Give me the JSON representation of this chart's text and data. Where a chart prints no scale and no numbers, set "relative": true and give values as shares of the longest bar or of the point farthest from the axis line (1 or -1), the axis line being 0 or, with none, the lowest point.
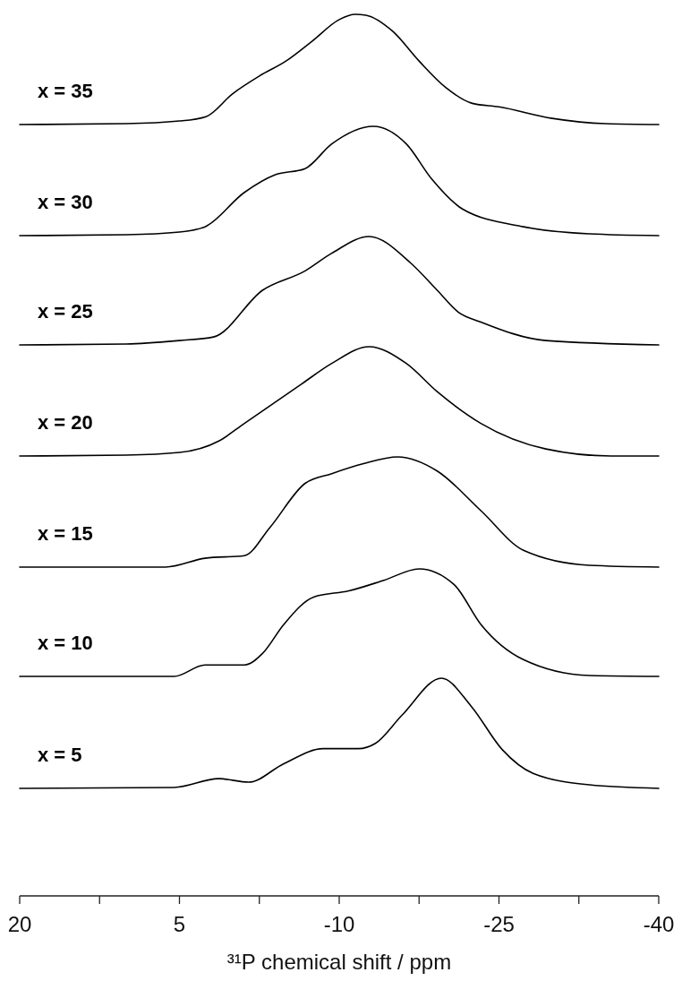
{
  "chart_data": {
    "type": "line",
    "relative": true,
    "xlabel": "³¹P chemical shift / ppm",
    "xlim": [
      20,
      -40
    ],
    "xticks": [
      20,
      {
        "value": 12.5,
        "label": null
      },
      5,
      {
        "value": -2.5,
        "label": null
      },
      -10,
      {
        "value": -17.5,
        "label": null
      },
      -25,
      {
        "value": -32.5,
        "label": null
      },
      -40
    ],
    "marker": "none",
    "line_style": "solid",
    "grid": false,
    "legend": false,
    "series": [
      {
        "name": "x = 35",
        "color": "#000000",
        "x": [
          20,
          10,
          5,
          2.5,
          0,
          -2.5,
          -5,
          -7.5,
          -10,
          -11.5,
          -12.5,
          -15,
          -17.5,
          -20,
          -22.5,
          -25,
          -30,
          -35,
          -40
        ],
        "values": [
          0.875,
          0.876,
          0.879,
          0.884,
          0.91,
          0.93,
          0.947,
          0.97,
          0.994,
          1.0,
          0.999,
          0.981,
          0.947,
          0.917,
          0.899,
          0.895,
          0.882,
          0.876,
          0.875
        ]
      },
      {
        "name": "x = 30",
        "color": "#000000",
        "x": [
          20,
          10,
          5,
          2.6,
          -1.1,
          -4,
          -6.8,
          -9.3,
          -13.2,
          -16.3,
          -18.7,
          -21.6,
          -27.3,
          -33.5,
          -40
        ],
        "values": [
          0.749,
          0.75,
          0.753,
          0.759,
          0.798,
          0.818,
          0.825,
          0.853,
          0.873,
          0.853,
          0.813,
          0.779,
          0.759,
          0.751,
          0.749
        ]
      },
      {
        "name": "x = 25",
        "color": "#000000",
        "x": [
          20,
          10,
          5,
          1.8,
          -2.8,
          -6.8,
          -9.3,
          -12.8,
          -16.7,
          -19.2,
          -21.2,
          -23.3,
          -29.4,
          -40
        ],
        "values": [
          0.625,
          0.626,
          0.63,
          0.634,
          0.687,
          0.709,
          0.729,
          0.748,
          0.718,
          0.687,
          0.662,
          0.651,
          0.63,
          0.625
        ]
      },
      {
        "name": "x = 20",
        "color": "#000000",
        "x": [
          20,
          10,
          5,
          1.3,
          -1.1,
          -6.5,
          -9.3,
          -12.8,
          -16.3,
          -19.2,
          -23.3,
          -29.4,
          -35.5,
          -40
        ],
        "values": [
          0.499,
          0.5,
          0.503,
          0.516,
          0.536,
          0.581,
          0.604,
          0.623,
          0.604,
          0.572,
          0.536,
          0.507,
          0.499,
          0.499
        ]
      },
      {
        "name": "x = 15",
        "color": "#000000",
        "x": [
          20,
          6.3,
          2.6,
          -1.1,
          -3.5,
          -6.8,
          -9.3,
          -12.2,
          -15.5,
          -19.2,
          -23.3,
          -27.3,
          -33.5,
          -40
        ],
        "values": [
          0.373,
          0.373,
          0.383,
          0.386,
          0.418,
          0.468,
          0.479,
          0.49,
          0.498,
          0.482,
          0.437,
          0.392,
          0.375,
          0.373
        ]
      },
      {
        "name": "x = 10",
        "color": "#000000",
        "x": [
          20,
          5.5,
          2.6,
          -1.1,
          -2.8,
          -4.8,
          -7.6,
          -10.9,
          -14.2,
          -17.5,
          -20.8,
          -23.3,
          -27.3,
          -33.5,
          -40
        ],
        "values": [
          0.249,
          0.249,
          0.262,
          0.262,
          0.275,
          0.308,
          0.339,
          0.346,
          0.358,
          0.371,
          0.353,
          0.308,
          0.268,
          0.25,
          0.249
        ]
      },
      {
        "name": "x = 5",
        "color": "#000000",
        "x": [
          20,
          5.5,
          1.3,
          -1.5,
          -4.8,
          -8.5,
          -11.8,
          -13.4,
          -15.9,
          -19.6,
          -22.4,
          -25.3,
          -28.2,
          -33.5,
          -40
        ],
        "values": [
          0.122,
          0.123,
          0.133,
          0.129,
          0.15,
          0.167,
          0.167,
          0.173,
          0.205,
          0.247,
          0.215,
          0.166,
          0.139,
          0.126,
          0.122
        ]
      }
    ]
  }
}
